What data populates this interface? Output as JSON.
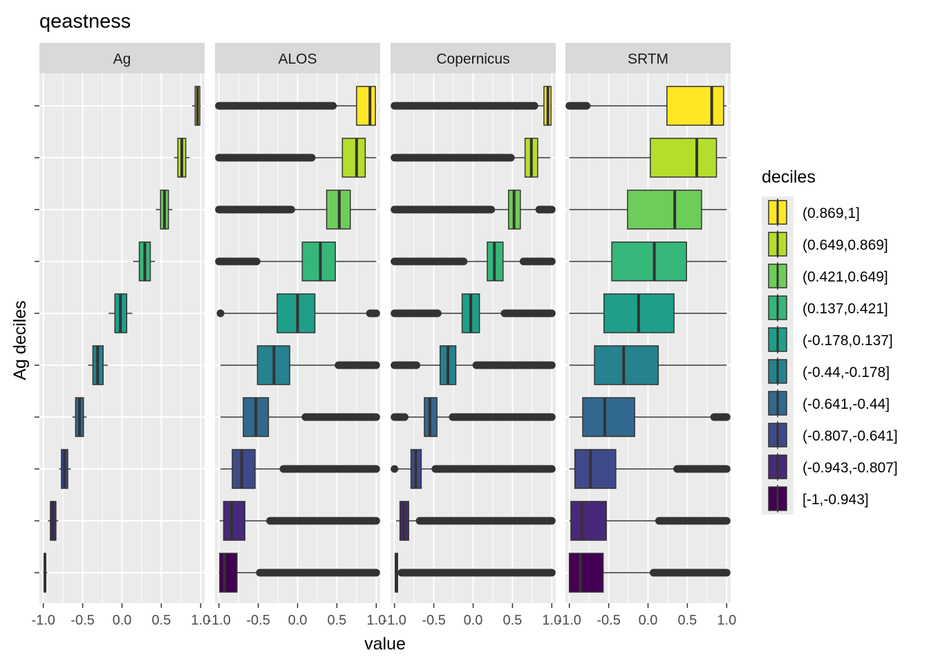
{
  "chart_data": {
    "type": "boxplot",
    "title": "qeastness",
    "xlabel": "value",
    "ylabel": "Ag deciles",
    "xlim": [
      -1.05,
      1.05
    ],
    "x_ticks": [
      -1.0,
      -0.5,
      0.0,
      0.5,
      1.0
    ],
    "x_tick_labels": [
      "-1.0",
      "-0.5",
      "0.0",
      "0.5",
      "1.0"
    ],
    "x_tick_labels_last_panel": [
      "-1.0",
      "-0.5",
      "0.0",
      "0.5",
      "1.0"
    ],
    "legend": {
      "title": "deciles",
      "position": "right",
      "entries": [
        {
          "label": "(0.869,1]",
          "color": "#FDE725"
        },
        {
          "label": "(0.649,0.869]",
          "color": "#B4DE2C"
        },
        {
          "label": "(0.421,0.649]",
          "color": "#6DCD59"
        },
        {
          "label": "(0.137,0.421]",
          "color": "#35B779"
        },
        {
          "label": "(-0.178,0.137]",
          "color": "#1F9E89"
        },
        {
          "label": "(-0.44,-0.178]",
          "color": "#26828E"
        },
        {
          "label": "(-0.641,-0.44]",
          "color": "#31688E"
        },
        {
          "label": "(-0.807,-0.641]",
          "color": "#3E4A89"
        },
        {
          "label": "(-0.943,-0.807]",
          "color": "#482878"
        },
        {
          "label": "[-1,-0.943]",
          "color": "#440154"
        }
      ]
    },
    "panels": [
      {
        "name": "Ag",
        "boxes": [
          {
            "decile": "(0.869,1]",
            "wl": 0.89,
            "q1": 0.93,
            "med": 0.96,
            "q3": 0.99,
            "wh": 1.0,
            "outliers": []
          },
          {
            "decile": "(0.649,0.869]",
            "wl": 0.66,
            "q1": 0.71,
            "med": 0.76,
            "q3": 0.81,
            "wh": 0.86,
            "outliers": []
          },
          {
            "decile": "(0.421,0.649]",
            "wl": 0.43,
            "q1": 0.49,
            "med": 0.54,
            "q3": 0.59,
            "wh": 0.64,
            "outliers": []
          },
          {
            "decile": "(0.137,0.421]",
            "wl": 0.14,
            "q1": 0.22,
            "med": 0.29,
            "q3": 0.36,
            "wh": 0.42,
            "outliers": []
          },
          {
            "decile": "(-0.178,0.137]",
            "wl": -0.17,
            "q1": -0.09,
            "med": -0.02,
            "q3": 0.06,
            "wh": 0.13,
            "outliers": []
          },
          {
            "decile": "(-0.44,-0.178]",
            "wl": -0.43,
            "q1": -0.37,
            "med": -0.31,
            "q3": -0.24,
            "wh": -0.18,
            "outliers": []
          },
          {
            "decile": "(-0.641,-0.44]",
            "wl": -0.63,
            "q1": -0.59,
            "med": -0.54,
            "q3": -0.49,
            "wh": -0.45,
            "outliers": []
          },
          {
            "decile": "(-0.807,-0.641]",
            "wl": -0.8,
            "q1": -0.77,
            "med": -0.73,
            "q3": -0.69,
            "wh": -0.65,
            "outliers": []
          },
          {
            "decile": "(-0.943,-0.807]",
            "wl": -0.94,
            "q1": -0.91,
            "med": -0.88,
            "q3": -0.84,
            "wh": -0.81,
            "outliers": []
          },
          {
            "decile": "[-1,-0.943]",
            "wl": -1.0,
            "q1": -0.99,
            "med": -0.98,
            "q3": -0.97,
            "wh": -0.95,
            "outliers": []
          }
        ]
      },
      {
        "name": "ALOS",
        "boxes": [
          {
            "decile": "(0.869,1]",
            "wl": 0.47,
            "q1": 0.75,
            "med": 0.92,
            "q3": 0.99,
            "wh": 1.0,
            "outliers": [
              [
                -1.0,
                0.45
              ]
            ]
          },
          {
            "decile": "(0.649,0.869]",
            "wl": 0.2,
            "q1": 0.57,
            "med": 0.75,
            "q3": 0.86,
            "wh": 1.0,
            "outliers": [
              [
                -1.0,
                0.18
              ]
            ]
          },
          {
            "decile": "(0.421,0.649]",
            "wl": -0.05,
            "q1": 0.37,
            "med": 0.53,
            "q3": 0.67,
            "wh": 1.0,
            "outliers": [
              [
                -1.0,
                -0.08
              ]
            ]
          },
          {
            "decile": "(0.137,0.421]",
            "wl": -0.5,
            "q1": 0.06,
            "med": 0.29,
            "q3": 0.48,
            "wh": 1.0,
            "outliers": [
              [
                -1.0,
                -0.52
              ]
            ]
          },
          {
            "decile": "(-0.178,0.137]",
            "wl": -0.96,
            "q1": -0.26,
            "med": 0.0,
            "q3": 0.22,
            "wh": 0.9,
            "outliers": [
              [
                -0.98,
                -0.98
              ],
              [
                0.92,
                1.0
              ]
            ]
          },
          {
            "decile": "(-0.44,-0.178]",
            "wl": -0.98,
            "q1": -0.51,
            "med": -0.3,
            "q3": -0.1,
            "wh": 0.5,
            "outliers": [
              [
                0.52,
                1.0
              ]
            ]
          },
          {
            "decile": "(-0.641,-0.44]",
            "wl": -0.98,
            "q1": -0.69,
            "med": -0.53,
            "q3": -0.37,
            "wh": 0.07,
            "outliers": [
              [
                0.1,
                1.0
              ]
            ]
          },
          {
            "decile": "(-0.807,-0.641]",
            "wl": -0.98,
            "q1": -0.83,
            "med": -0.71,
            "q3": -0.54,
            "wh": -0.22,
            "outliers": [
              [
                -0.18,
                1.0
              ]
            ]
          },
          {
            "decile": "(-0.943,-0.807]",
            "wl": -0.99,
            "q1": -0.94,
            "med": -0.84,
            "q3": -0.67,
            "wh": -0.38,
            "outliers": [
              [
                -0.35,
                1.0
              ]
            ]
          },
          {
            "decile": "[-1,-0.943]",
            "wl": -1.0,
            "q1": -0.99,
            "med": -0.93,
            "q3": -0.77,
            "wh": -0.5,
            "outliers": [
              [
                -0.48,
                1.0
              ]
            ]
          }
        ]
      },
      {
        "name": "Copernicus",
        "boxes": [
          {
            "decile": "(0.869,1]",
            "wl": 0.8,
            "q1": 0.9,
            "med": 0.95,
            "q3": 0.99,
            "wh": 1.0,
            "outliers": [
              [
                -1.0,
                0.78
              ]
            ]
          },
          {
            "decile": "(0.649,0.869]",
            "wl": 0.5,
            "q1": 0.66,
            "med": 0.74,
            "q3": 0.82,
            "wh": 0.98,
            "outliers": [
              [
                -1.0,
                0.48
              ]
            ]
          },
          {
            "decile": "(0.421,0.649]",
            "wl": 0.25,
            "q1": 0.45,
            "med": 0.52,
            "q3": 0.6,
            "wh": 0.82,
            "outliers": [
              [
                -1.0,
                0.23
              ],
              [
                0.84,
                1.0
              ]
            ]
          },
          {
            "decile": "(0.137,0.421]",
            "wl": -0.1,
            "q1": 0.18,
            "med": 0.27,
            "q3": 0.38,
            "wh": 0.62,
            "outliers": [
              [
                -1.0,
                -0.12
              ],
              [
                0.64,
                1.0
              ]
            ]
          },
          {
            "decile": "(-0.178,0.137]",
            "wl": -0.42,
            "q1": -0.14,
            "med": -0.03,
            "q3": 0.08,
            "wh": 0.38,
            "outliers": [
              [
                -1.0,
                -0.45
              ],
              [
                0.4,
                1.0
              ]
            ]
          },
          {
            "decile": "(-0.44,-0.178]",
            "wl": -0.7,
            "q1": -0.42,
            "med": -0.32,
            "q3": -0.22,
            "wh": 0.02,
            "outliers": [
              [
                -1.0,
                -0.72
              ],
              [
                0.04,
                1.0
              ]
            ]
          },
          {
            "decile": "(-0.641,-0.44]",
            "wl": -0.85,
            "q1": -0.62,
            "med": -0.55,
            "q3": -0.46,
            "wh": -0.28,
            "outliers": [
              [
                -1.0,
                -0.87
              ],
              [
                -0.26,
                1.0
              ]
            ]
          },
          {
            "decile": "(-0.807,-0.641]",
            "wl": -0.97,
            "q1": -0.79,
            "med": -0.73,
            "q3": -0.66,
            "wh": -0.5,
            "outliers": [
              [
                -1.0,
                -1.0
              ],
              [
                -0.48,
                1.0
              ]
            ]
          },
          {
            "decile": "(-0.943,-0.807]",
            "wl": -0.98,
            "q1": -0.93,
            "med": -0.88,
            "q3": -0.82,
            "wh": -0.7,
            "outliers": [
              [
                -0.68,
                1.0
              ]
            ]
          },
          {
            "decile": "[-1,-0.943]",
            "wl": -0.99,
            "q1": -0.99,
            "med": -0.98,
            "q3": -0.96,
            "wh": -0.93,
            "outliers": [
              [
                -0.91,
                1.0
              ]
            ]
          }
        ]
      },
      {
        "name": "SRTM",
        "boxes": [
          {
            "decile": "(0.869,1]",
            "wl": -0.75,
            "q1": 0.24,
            "med": 0.81,
            "q3": 0.96,
            "wh": 1.0,
            "outliers": [
              [
                -1.0,
                -0.78
              ]
            ]
          },
          {
            "decile": "(0.649,0.869]",
            "wl": -1.0,
            "q1": 0.03,
            "med": 0.62,
            "q3": 0.87,
            "wh": 1.0,
            "outliers": []
          },
          {
            "decile": "(0.421,0.649]",
            "wl": -1.0,
            "q1": -0.26,
            "med": 0.34,
            "q3": 0.68,
            "wh": 1.0,
            "outliers": []
          },
          {
            "decile": "(0.137,0.421]",
            "wl": -1.0,
            "q1": -0.46,
            "med": 0.08,
            "q3": 0.49,
            "wh": 1.0,
            "outliers": []
          },
          {
            "decile": "(-0.178,0.137]",
            "wl": -1.0,
            "q1": -0.56,
            "med": -0.12,
            "q3": 0.33,
            "wh": 1.0,
            "outliers": []
          },
          {
            "decile": "(-0.44,-0.178]",
            "wl": -1.0,
            "q1": -0.68,
            "med": -0.31,
            "q3": 0.13,
            "wh": 1.0,
            "outliers": []
          },
          {
            "decile": "(-0.641,-0.44]",
            "wl": -1.0,
            "q1": -0.83,
            "med": -0.55,
            "q3": -0.17,
            "wh": 0.82,
            "outliers": [
              [
                0.84,
                1.0
              ]
            ]
          },
          {
            "decile": "(-0.807,-0.641]",
            "wl": -1.0,
            "q1": -0.93,
            "med": -0.73,
            "q3": -0.41,
            "wh": 0.35,
            "outliers": [
              [
                0.37,
                1.0
              ]
            ]
          },
          {
            "decile": "(-0.943,-0.807]",
            "wl": -1.0,
            "q1": -0.98,
            "med": -0.84,
            "q3": -0.53,
            "wh": 0.12,
            "outliers": [
              [
                0.14,
                1.0
              ]
            ]
          },
          {
            "decile": "[-1,-0.943]",
            "wl": -1.0,
            "q1": -1.0,
            "med": -0.86,
            "q3": -0.57,
            "wh": 0.05,
            "outliers": [
              [
                0.07,
                1.0
              ]
            ]
          }
        ]
      }
    ]
  }
}
